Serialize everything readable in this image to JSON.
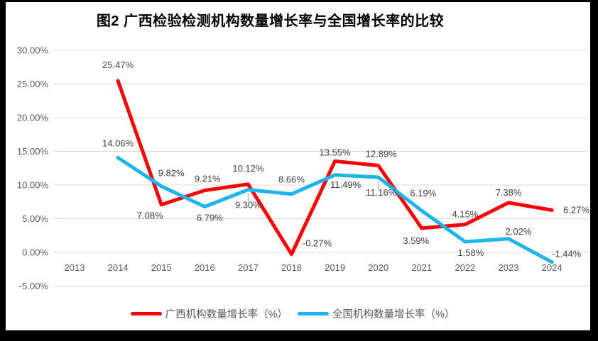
{
  "frame": {
    "background": "#000000",
    "card_background": "#ffffff"
  },
  "title": "图2 广西检验检测机构数量增长率与全国增长率的比较",
  "chart_data": {
    "type": "line",
    "title": "图2 广西检验检测机构数量增长率与全国增长率的比较",
    "categories": [
      "2013",
      "2014",
      "2015",
      "2016",
      "2017",
      "2018",
      "2019",
      "2020",
      "2021",
      "2022",
      "2023",
      "2024"
    ],
    "ylim": [
      -5,
      30
    ],
    "ytick_step": 5,
    "y_axis": {
      "tick_values": [
        30,
        25,
        20,
        15,
        10,
        5,
        0,
        -5
      ],
      "tick_labels": [
        "30.00%",
        "25.00%",
        "20.00%",
        "15.00%",
        "10.00%",
        "5.00%",
        "0.00%",
        "-5.00%"
      ]
    },
    "grid": true,
    "legend_position": "bottom",
    "colors": {
      "grid": "#d9d9d9",
      "tick_text": "#595959",
      "data_label_text": "#3f3f3f"
    },
    "series": [
      {
        "name": "广西机构数量增长率（%）",
        "color": "#fe0000",
        "values": [
          null,
          25.47,
          7.08,
          9.21,
          10.12,
          -0.27,
          13.55,
          12.89,
          3.59,
          4.15,
          7.38,
          6.27
        ],
        "labels": [
          "",
          "25.47%",
          "7.08%",
          "9.21%",
          "10.12%",
          "-0.27%",
          "13.55%",
          "12.89%",
          "3.59%",
          "4.15%",
          "7.38%",
          "6.27%"
        ],
        "label_offsets": [
          null,
          {
            "dx": 0,
            "dy": -18
          },
          {
            "dx": -16,
            "dy": 20
          },
          {
            "dx": 4,
            "dy": -12
          },
          {
            "dx": 0,
            "dy": -18
          },
          {
            "dx": 36,
            "dy": -11
          },
          {
            "dx": 0,
            "dy": -8
          },
          {
            "dx": 4,
            "dy": -12
          },
          {
            "dx": -8,
            "dy": 22
          },
          {
            "dx": 0,
            "dy": -10
          },
          {
            "dx": 0,
            "dy": -10
          },
          {
            "dx": 16,
            "dy": 4,
            "anchor": "start"
          }
        ]
      },
      {
        "name": "全国机构数量增长率（%）",
        "color": "#1eb4eb",
        "values": [
          null,
          14.06,
          9.82,
          6.79,
          9.3,
          8.66,
          11.49,
          11.16,
          6.19,
          1.58,
          2.02,
          -1.44
        ],
        "labels": [
          "",
          "14.06%",
          "9.82%",
          "6.79%",
          "9.30%",
          "8.66%",
          "11.49%",
          "11.16%",
          "6.19%",
          "1.58%",
          "2.02%",
          "-1.44%"
        ],
        "label_offsets": [
          null,
          {
            "dx": 0,
            "dy": -16
          },
          {
            "dx": 14,
            "dy": -14
          },
          {
            "dx": 7,
            "dy": 20
          },
          {
            "dx": 0,
            "dy": 26,
            "leader": true
          },
          {
            "dx": 0,
            "dy": -16
          },
          {
            "dx": 15,
            "dy": 18
          },
          {
            "dx": 4,
            "dy": 26,
            "leader": true
          },
          {
            "dx": 2,
            "dy": -20
          },
          {
            "dx": 8,
            "dy": 20
          },
          {
            "dx": 14,
            "dy": -6
          },
          {
            "dx": 0,
            "dy": -7,
            "anchor": "start"
          }
        ]
      }
    ]
  }
}
